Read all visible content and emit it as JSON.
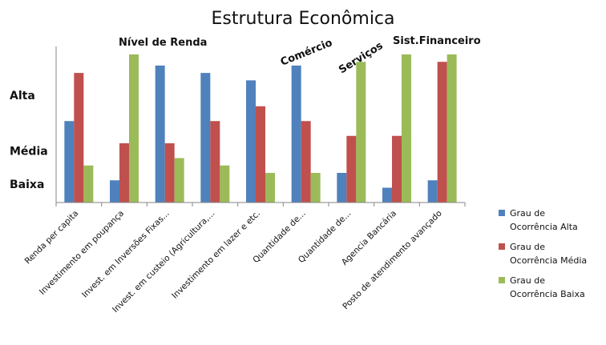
{
  "chart_data": {
    "type": "bar",
    "title": "Estrutura Econômica",
    "categories": [
      "Renda per capita",
      "Investimento em poupança",
      "Invest. em Inversões Fixas...",
      "Invest. em custeio (Agricultura,...",
      "Investimento em lazer e etc.",
      "Quantidade de...",
      "Quantidade de...",
      "Agencia Bancária",
      "Posto de atendimento avançado"
    ],
    "series": [
      {
        "name": "Grau de Ocorrência Alta",
        "color": "#4F81BD",
        "values": [
          2.2,
          0.6,
          3.7,
          3.5,
          3.3,
          3.7,
          0.8,
          0.4,
          0.6
        ]
      },
      {
        "name": "Grau de Ocorrência Média",
        "color": "#C0504D",
        "values": [
          3.5,
          1.6,
          1.6,
          2.2,
          2.6,
          2.2,
          1.8,
          1.8,
          3.8
        ]
      },
      {
        "name": "Grau de Ocorrência Baixa",
        "color": "#9BBB59",
        "values": [
          1.0,
          4.0,
          1.2,
          1.0,
          0.8,
          0.8,
          3.8,
          4.0,
          4.0
        ]
      }
    ],
    "y_category_labels": [
      {
        "label": "Alta",
        "value": 2.9
      },
      {
        "label": "Média",
        "value": 1.4
      },
      {
        "label": "Baixa",
        "value": 0.5
      }
    ],
    "group_labels": [
      {
        "label": "Nível de Renda",
        "rotated": false
      },
      {
        "label": "Comércio",
        "rotated": true
      },
      {
        "label": "Serviços",
        "rotated": true
      },
      {
        "label": "Sist.Financeiro",
        "rotated": false
      }
    ],
    "ylim": [
      0,
      4
    ],
    "grid": false,
    "legend_position": "right"
  }
}
